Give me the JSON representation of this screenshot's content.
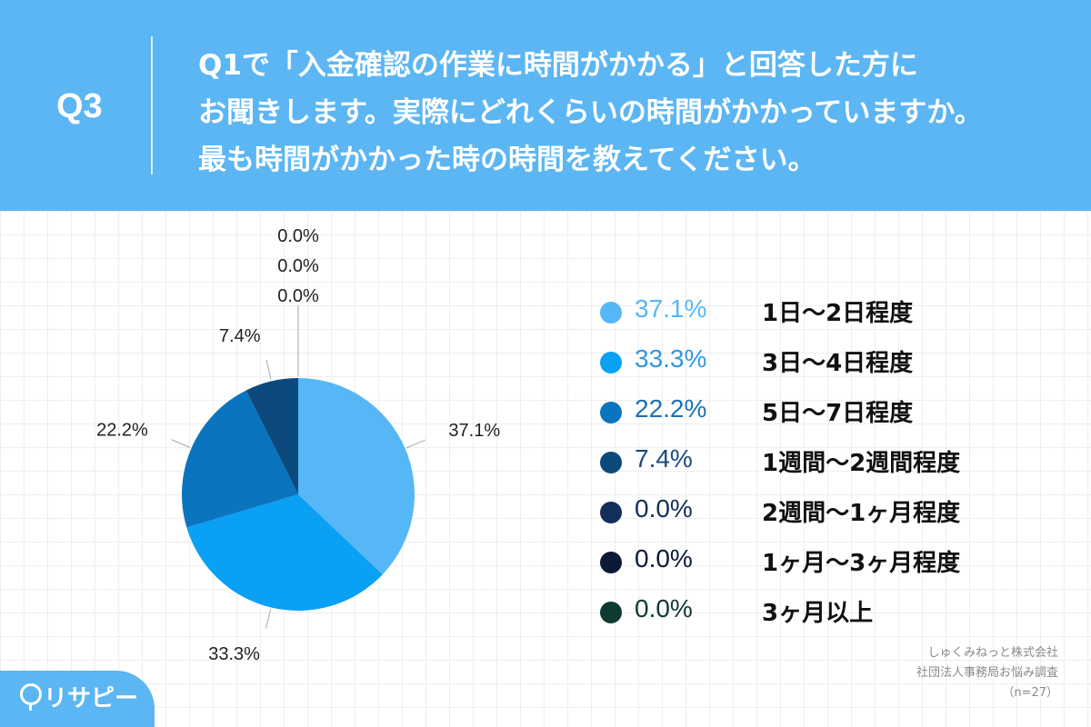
{
  "header": {
    "q_label": "Q3",
    "question_lines": [
      "Q1で「入金確認の作業に時間がかかる」と回答した方に",
      "お聞きします。実際にどれくらいの時間がかかっていますか。",
      "最も時間がかかった時の時間を教えてください。"
    ]
  },
  "chart_data": {
    "type": "pie",
    "categories": [
      "1日〜2日程度",
      "3日〜4日程度",
      "5日〜7日程度",
      "1週間〜2週間程度",
      "2週間〜1ヶ月程度",
      "1ヶ月〜3ヶ月程度",
      "3ヶ月以上"
    ],
    "values": [
      37.1,
      33.3,
      22.2,
      7.4,
      0.0,
      0.0,
      0.0
    ],
    "value_labels": [
      "37.1%",
      "33.3%",
      "22.2%",
      "7.4%",
      "0.0%",
      "0.0%",
      "0.0%"
    ],
    "colors": [
      "#56b7f7",
      "#0aa0f4",
      "#0b74bf",
      "#0c4a7d",
      "#14305a",
      "#0b1a36",
      "#0f3a32"
    ],
    "legend_position": "right",
    "start_angle_deg": 0,
    "direction": "clockwise"
  },
  "legend": {
    "pct_colors": [
      "#56b7f7",
      "#2f97e3",
      "#1e6fb6",
      "#1b4a80",
      "#14305a",
      "#0b1a36",
      "#0f3a32"
    ]
  },
  "source": {
    "lines": [
      "しゅくみねっと株式会社",
      "社団法人事務局お悩み調査",
      "（n=27）"
    ]
  },
  "logo": {
    "text": "リサピー",
    "icon": "pin-icon"
  }
}
